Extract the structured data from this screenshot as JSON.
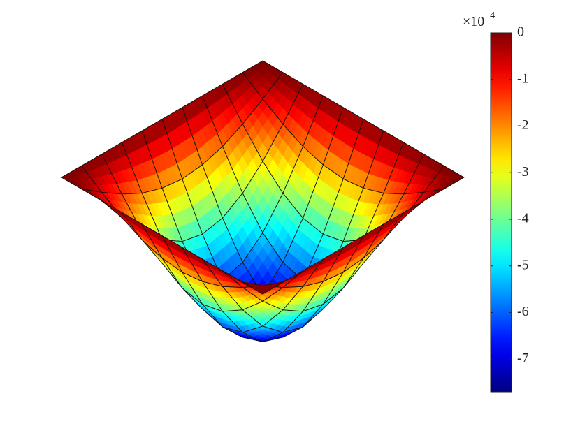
{
  "chart_data": {
    "type": "surface",
    "colormap": "jet",
    "z": [
      [
        0,
        0,
        0,
        0,
        0,
        0,
        0,
        0,
        0,
        0,
        0
      ],
      [
        0,
        -0.74,
        -1.4,
        -1.93,
        -2.26,
        -2.38,
        -2.26,
        -1.93,
        -1.4,
        -0.74,
        0
      ],
      [
        0,
        -1.4,
        -2.66,
        -3.66,
        -4.31,
        -4.53,
        -4.31,
        -3.66,
        -2.66,
        -1.4,
        0
      ],
      [
        0,
        -1.93,
        -3.66,
        -5.04,
        -5.92,
        -6.23,
        -5.92,
        -5.04,
        -3.66,
        -1.93,
        0
      ],
      [
        0,
        -2.26,
        -4.31,
        -5.92,
        -6.96,
        -7.32,
        -6.96,
        -5.92,
        -4.31,
        -2.26,
        0
      ],
      [
        0,
        -2.38,
        -4.53,
        -6.23,
        -7.32,
        -7.7,
        -7.32,
        -6.23,
        -4.53,
        -2.38,
        0
      ],
      [
        0,
        -2.26,
        -4.31,
        -5.92,
        -6.96,
        -7.32,
        -6.96,
        -5.92,
        -4.31,
        -2.26,
        0
      ],
      [
        0,
        -1.93,
        -3.66,
        -5.04,
        -5.92,
        -6.23,
        -5.92,
        -5.04,
        -3.66,
        -1.93,
        0
      ],
      [
        0,
        -1.4,
        -2.66,
        -3.66,
        -4.31,
        -4.53,
        -4.31,
        -3.66,
        -2.66,
        -1.4,
        0
      ],
      [
        0,
        -0.74,
        -1.4,
        -1.93,
        -2.26,
        -2.38,
        -2.26,
        -1.93,
        -1.4,
        -0.74,
        0
      ],
      [
        0,
        0,
        0,
        0,
        0,
        0,
        0,
        0,
        0,
        0,
        0
      ]
    ],
    "clim": [
      -7.7,
      0
    ],
    "cticks": [
      0,
      -1,
      -2,
      -3,
      -4,
      -5,
      -6,
      -7
    ],
    "colorbar_multiplier": {
      "base": "×10",
      "exponent": "−4"
    }
  }
}
